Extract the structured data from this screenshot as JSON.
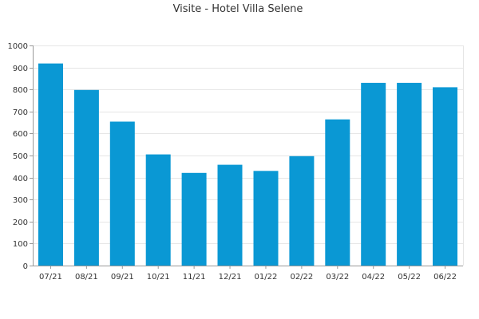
{
  "chart_data": {
    "type": "bar",
    "title": "Visite - Hotel Villa Selene",
    "xlabel": "",
    "ylabel": "",
    "categories": [
      "07/21",
      "08/21",
      "09/21",
      "10/21",
      "11/21",
      "12/21",
      "01/22",
      "02/22",
      "03/22",
      "04/22",
      "05/22",
      "06/22"
    ],
    "values": [
      918,
      798,
      654,
      505,
      421,
      458,
      430,
      497,
      664,
      830,
      830,
      810
    ],
    "ylim": [
      0,
      1000
    ],
    "yticks": [
      0,
      100,
      200,
      300,
      400,
      500,
      600,
      700,
      800,
      900,
      1000
    ],
    "grid": true,
    "bar_color": "#0a98d4"
  }
}
